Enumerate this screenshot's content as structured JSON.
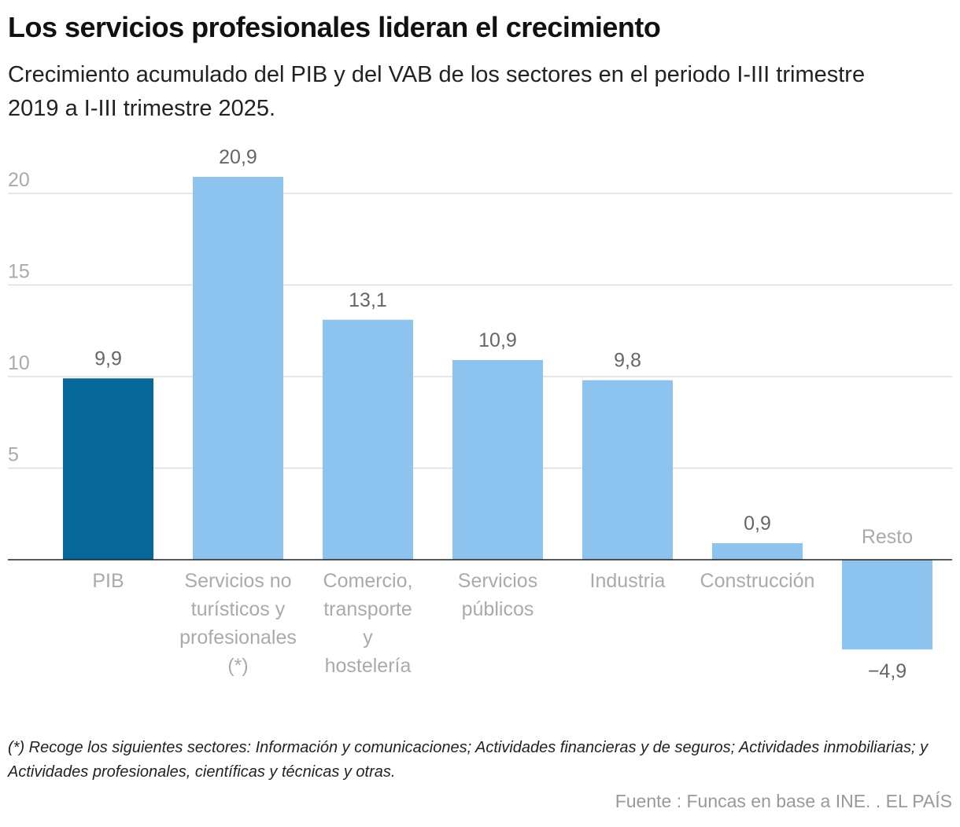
{
  "title": "Los servicios profesionales lideran el crecimiento",
  "subtitle": "Crecimiento acumulado del PIB y del VAB de los sectores en el periodo I-III trimestre 2019 a I-III trimestre 2025.",
  "footnote": "(*) Recoge los siguientes sectores: Información y comunicaciones; Actividades financieras y de seguros; Actividades inmobiliarias; y Actividades profesionales, científicas y técnicas y otras.",
  "source": "Fuente : Funcas en base a INE. . EL PAÍS",
  "chart_data": {
    "type": "bar",
    "title": "Los servicios profesionales lideran el crecimiento",
    "xlabel": "",
    "ylabel": "",
    "ylim": [
      -4.9,
      21
    ],
    "yticks": [
      5,
      10,
      15,
      20
    ],
    "grid": true,
    "categories": [
      [
        "PIB"
      ],
      [
        "Servicios no",
        "turísticos y",
        "profesionales",
        "(*)"
      ],
      [
        "Comercio,",
        "transporte",
        "y",
        "hostelería"
      ],
      [
        "Servicios",
        "públicos"
      ],
      [
        "Industria"
      ],
      [
        "Construcción"
      ],
      [
        "Resto"
      ]
    ],
    "values": [
      9.9,
      20.9,
      13.1,
      10.9,
      9.8,
      0.9,
      -4.9
    ],
    "value_labels": [
      "9,9",
      "20,9",
      "13,1",
      "10,9",
      "9,8",
      "0,9",
      "−4,9"
    ],
    "colors": [
      "#05679a",
      "#8cc3ef",
      "#8cc3ef",
      "#8cc3ef",
      "#8cc3ef",
      "#8cc3ef",
      "#8cc3ef"
    ]
  }
}
